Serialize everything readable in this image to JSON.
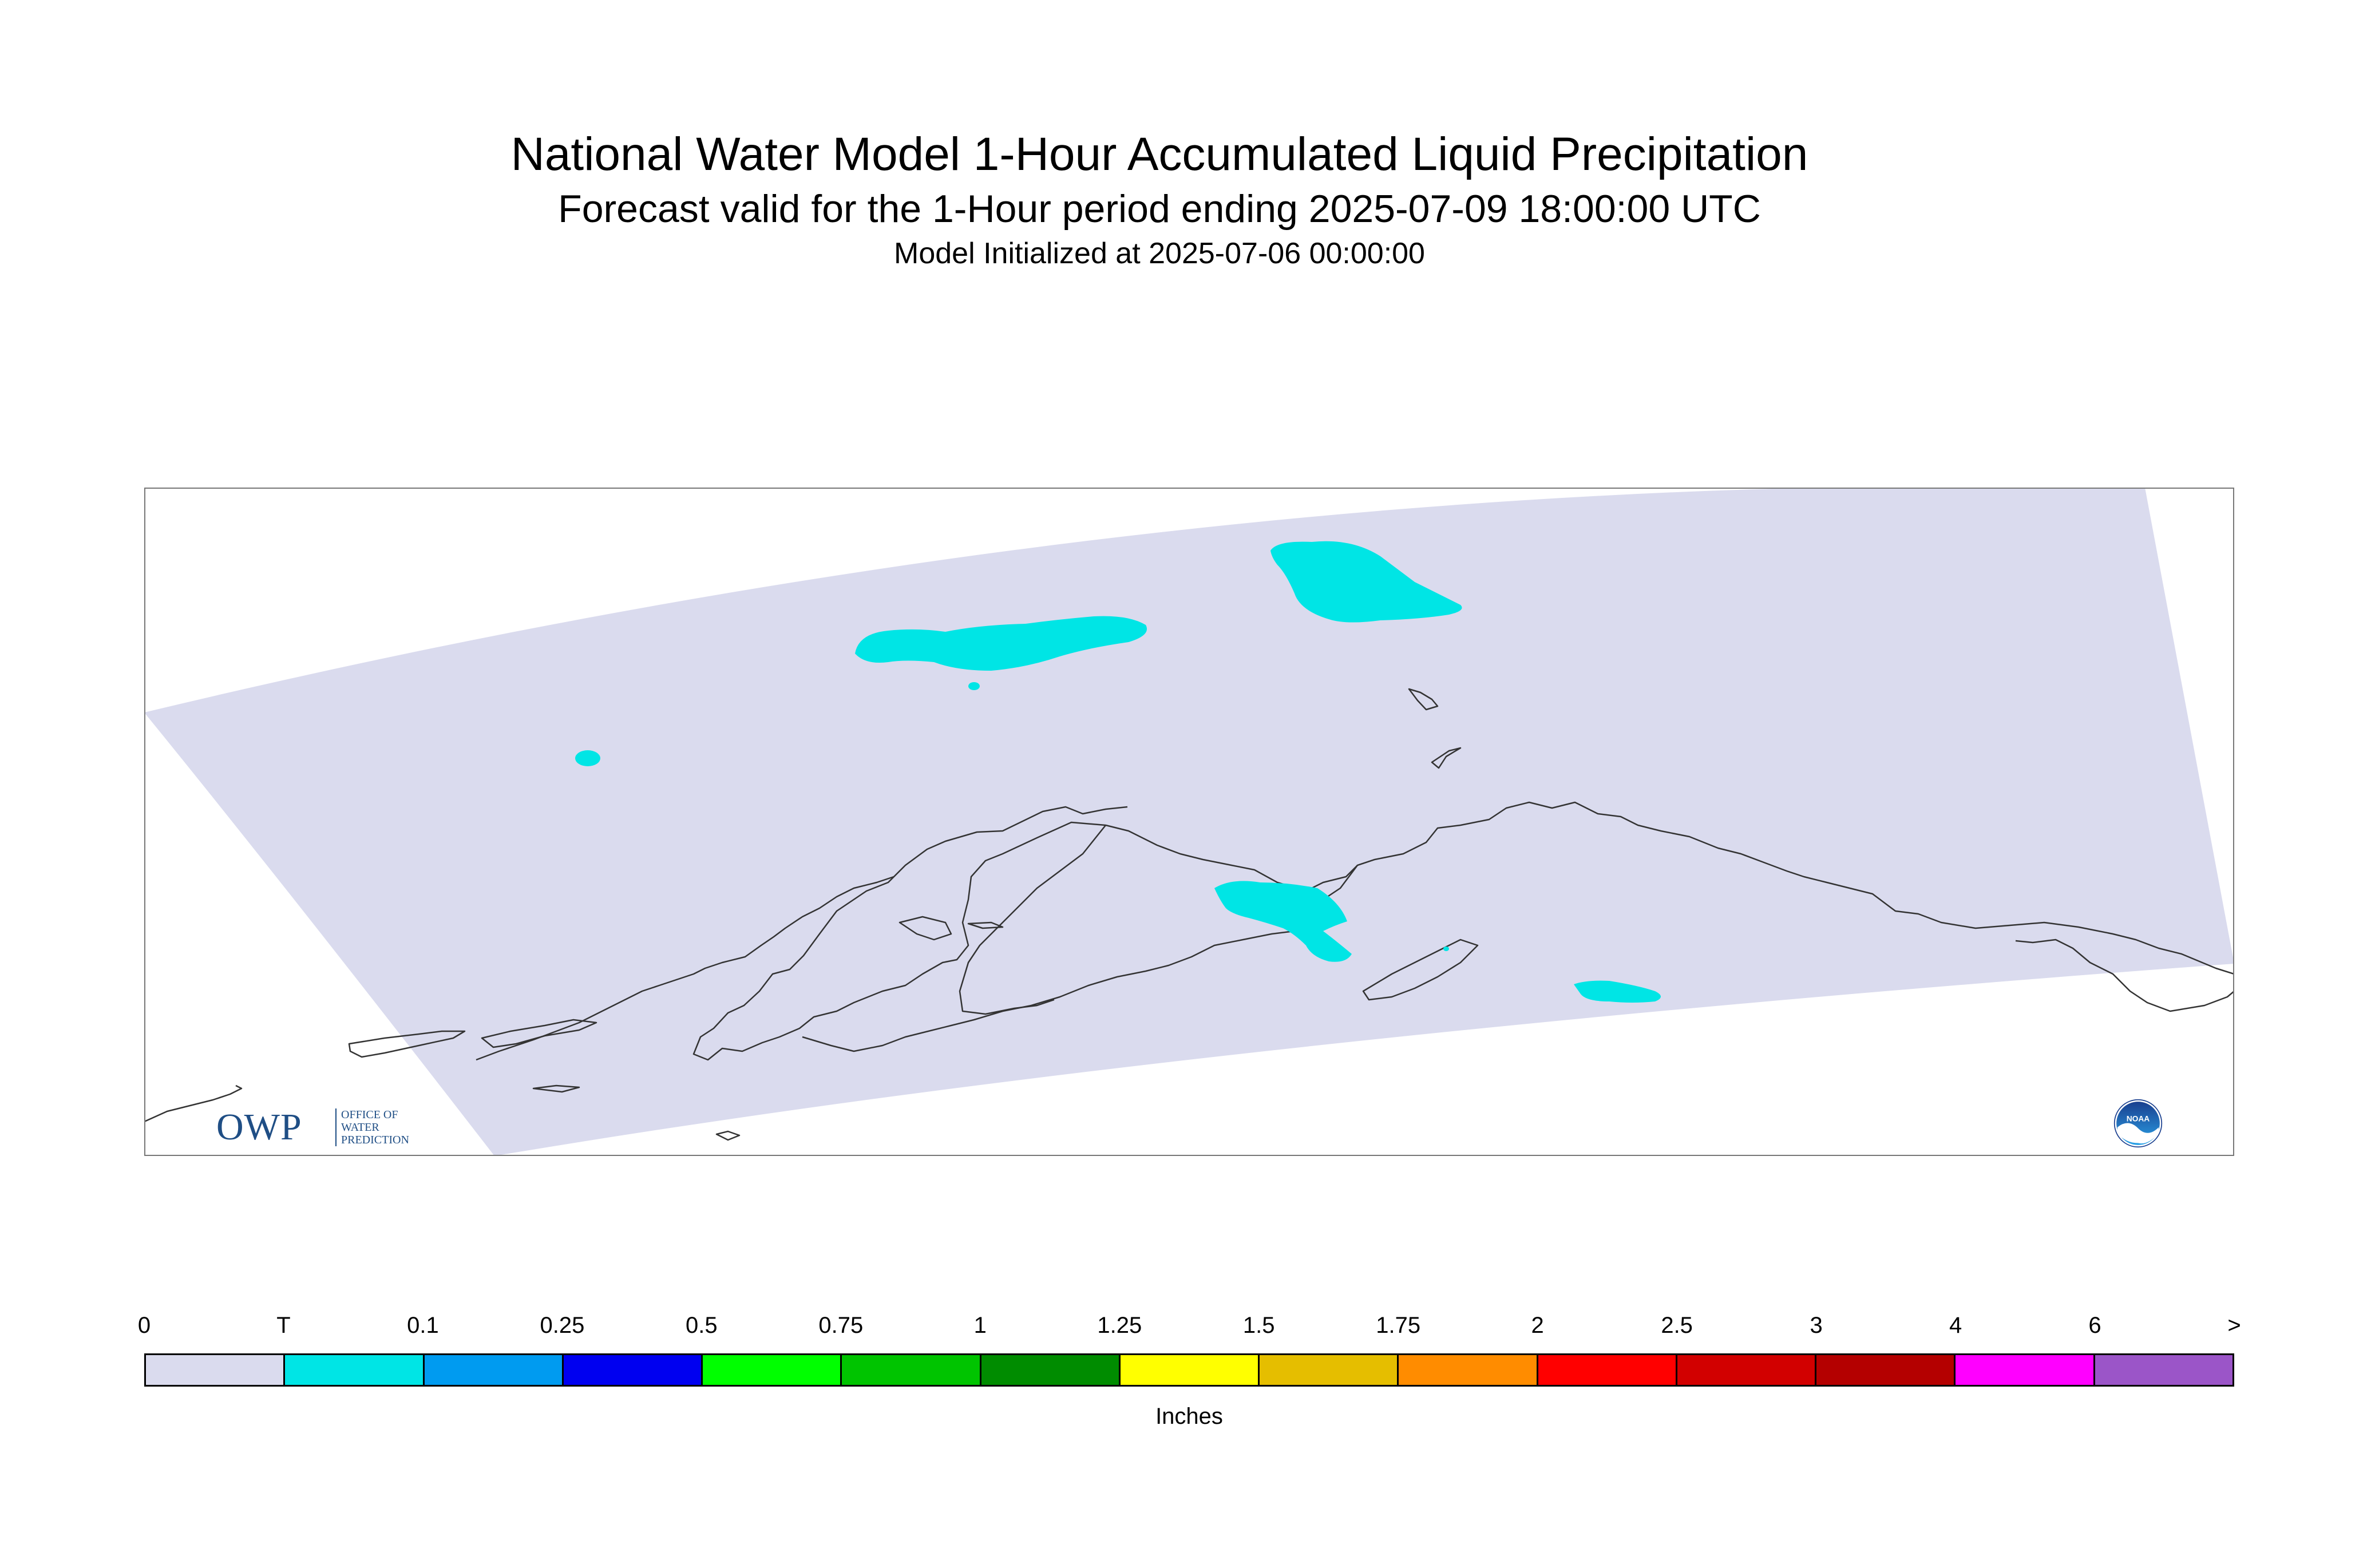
{
  "title": {
    "main": "National Water Model 1-Hour Accumulated Liquid Precipitation",
    "sub": "Forecast valid for the 1-Hour period ending 2025-07-09 18:00:00 UTC",
    "init": "Model Initialized at 2025-07-06 00:00:00"
  },
  "map": {
    "region": "Alaska",
    "domain_color": "#dadbee",
    "precip_color": "#00e5e5",
    "coastline_color": "#333333"
  },
  "legend": {
    "labels": [
      "0",
      "T",
      "0.1",
      "0.25",
      "0.5",
      "0.75",
      "1",
      "1.25",
      "1.5",
      "1.75",
      "2",
      "2.5",
      "3",
      "4",
      "6",
      ">"
    ],
    "colors": [
      "#dadbee",
      "#00e5e5",
      "#009bf0",
      "#0000f0",
      "#00ff00",
      "#00c400",
      "#008c00",
      "#ffff00",
      "#e5be00",
      "#ff8c00",
      "#ff0000",
      "#d20000",
      "#b40000",
      "#ff00ff",
      "#9b55c8"
    ],
    "units": "Inches"
  },
  "logos": {
    "owp_mark": "OWP",
    "owp_lines": [
      "OFFICE OF",
      "WATER",
      "PREDICTION"
    ],
    "noaa_text": "NOAA"
  }
}
